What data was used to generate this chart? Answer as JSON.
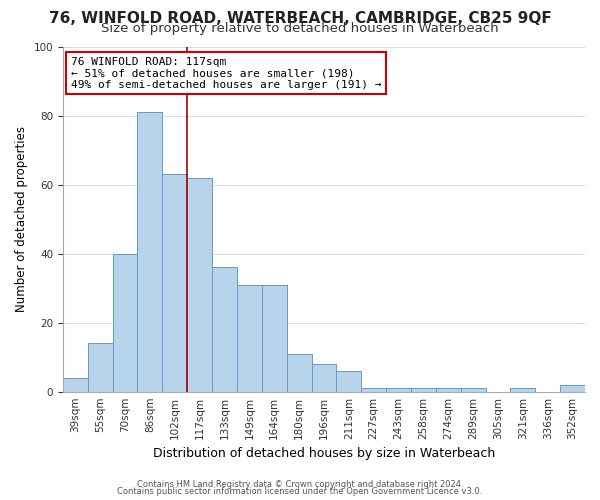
{
  "title1": "76, WINFOLD ROAD, WATERBEACH, CAMBRIDGE, CB25 9QF",
  "title2": "Size of property relative to detached houses in Waterbeach",
  "xlabel": "Distribution of detached houses by size in Waterbeach",
  "ylabel": "Number of detached properties",
  "categories": [
    "39sqm",
    "55sqm",
    "70sqm",
    "86sqm",
    "102sqm",
    "117sqm",
    "133sqm",
    "149sqm",
    "164sqm",
    "180sqm",
    "196sqm",
    "211sqm",
    "227sqm",
    "243sqm",
    "258sqm",
    "274sqm",
    "289sqm",
    "305sqm",
    "321sqm",
    "336sqm",
    "352sqm"
  ],
  "values": [
    4,
    14,
    40,
    81,
    63,
    62,
    36,
    31,
    31,
    11,
    8,
    6,
    1,
    1,
    1,
    1,
    1,
    0,
    1,
    0,
    2
  ],
  "bar_color": "#b8d4ea",
  "bar_edge_color": "#6699cc",
  "vline_color": "#aa0000",
  "annotation_text": "76 WINFOLD ROAD: 117sqm\n← 51% of detached houses are smaller (198)\n49% of semi-detached houses are larger (191) →",
  "annotation_box_color": "#ffffff",
  "annotation_box_edge": "#cc0000",
  "footer1": "Contains HM Land Registry data © Crown copyright and database right 2024.",
  "footer2": "Contains public sector information licensed under the Open Government Licence v3.0.",
  "ylim": [
    0,
    100
  ],
  "title_fontsize": 11,
  "subtitle_fontsize": 9.5,
  "xlabel_fontsize": 9,
  "ylabel_fontsize": 8.5,
  "bg_color": "#ffffff",
  "grid_color": "#ccddee"
}
